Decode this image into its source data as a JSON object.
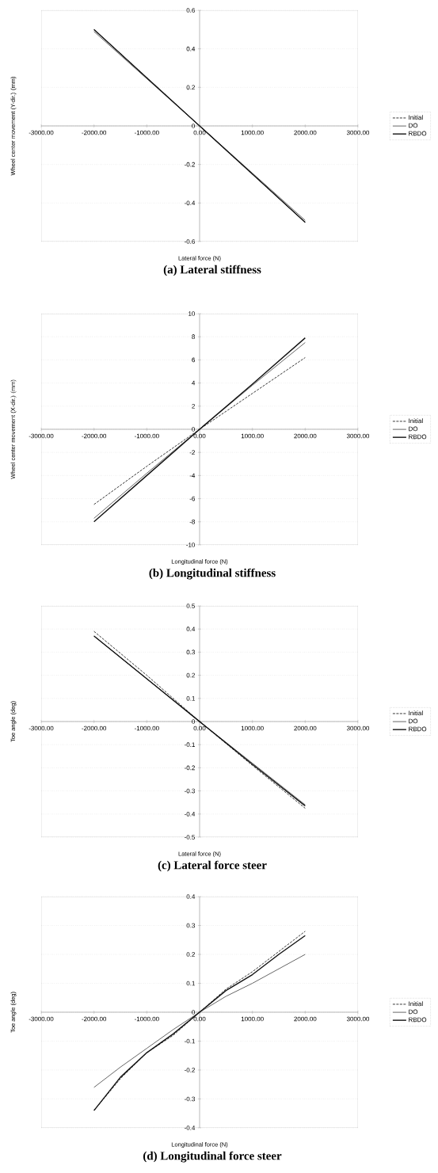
{
  "chart_data": [
    {
      "type": "line",
      "title": "(a) Lateral stiffness",
      "xlabel": "Lateral force (N)",
      "ylabel": "Wheel center movement (Y-dir.) (mm)",
      "x": [
        -2000,
        -1000,
        0,
        1000,
        2000
      ],
      "series": [
        {
          "name": "Initial",
          "color": "#222222",
          "line_style": "dashed",
          "values": [
            0.5,
            0.25,
            0,
            -0.25,
            -0.5
          ]
        },
        {
          "name": "DO",
          "color": "#555555",
          "line_style": "solid",
          "values": [
            0.49,
            0.245,
            0,
            -0.245,
            -0.49
          ]
        },
        {
          "name": "RBDO",
          "color": "#111111",
          "line_style": "solid",
          "values": [
            0.5,
            0.25,
            0,
            -0.25,
            -0.5
          ]
        }
      ],
      "xlim": [
        -3000,
        3000
      ],
      "ylim": [
        -0.6,
        0.6
      ],
      "xticks": [
        {
          "value": -3000,
          "label": "-3000.00"
        },
        {
          "value": -2000,
          "label": "-2000.00"
        },
        {
          "value": -1000,
          "label": "-1000.00"
        },
        {
          "value": 0,
          "label": "0.00"
        },
        {
          "value": 1000,
          "label": "1000.00"
        },
        {
          "value": 2000,
          "label": "2000.00"
        },
        {
          "value": 3000,
          "label": "3000.00"
        }
      ],
      "yticks": [
        -0.6,
        -0.4,
        -0.2,
        0,
        0.2,
        0.4,
        0.6
      ],
      "grid": "y",
      "legend": "right"
    },
    {
      "type": "line",
      "title": "(b) Longitudinal stiffness",
      "xlabel": "Longitudinal force (N)",
      "ylabel": "Wheel center movement (X-dir.) (mm)",
      "x": [
        -2000,
        -1000,
        0,
        1000,
        2000
      ],
      "series": [
        {
          "name": "Initial",
          "color": "#222222",
          "line_style": "dashed",
          "values": [
            -6.5,
            -3.2,
            0,
            3.1,
            6.2
          ]
        },
        {
          "name": "DO",
          "color": "#555555",
          "line_style": "solid",
          "values": [
            -7.7,
            -3.8,
            0,
            3.8,
            7.5
          ]
        },
        {
          "name": "RBDO",
          "color": "#111111",
          "line_style": "solid",
          "values": [
            -8.0,
            -4.0,
            0,
            3.9,
            7.9
          ]
        }
      ],
      "xlim": [
        -3000,
        3000
      ],
      "ylim": [
        -10,
        10
      ],
      "xticks": [
        {
          "value": -3000,
          "label": "-3000.00"
        },
        {
          "value": -2000,
          "label": "-2000.00"
        },
        {
          "value": -1000,
          "label": "-1000.00"
        },
        {
          "value": 0,
          "label": "0.00"
        },
        {
          "value": 1000,
          "label": "1000.00"
        },
        {
          "value": 2000,
          "label": "2000.00"
        },
        {
          "value": 3000,
          "label": "3000.00"
        }
      ],
      "yticks": [
        -10,
        -8,
        -6,
        -4,
        -2,
        0,
        2,
        4,
        6,
        8,
        10
      ],
      "grid": "y",
      "legend": "right"
    },
    {
      "type": "line",
      "title": "(c) Lateral force steer",
      "xlabel": "Lateral force (N)",
      "ylabel": "Toe angle (deg)",
      "x": [
        -2000,
        -1000,
        0,
        1000,
        2000
      ],
      "series": [
        {
          "name": "Initial",
          "color": "#222222",
          "line_style": "dashed",
          "values": [
            0.39,
            0.2,
            0,
            -0.19,
            -0.375
          ]
        },
        {
          "name": "DO",
          "color": "#555555",
          "line_style": "solid",
          "values": [
            0.37,
            0.185,
            0,
            -0.18,
            -0.36
          ]
        },
        {
          "name": "RBDO",
          "color": "#111111",
          "line_style": "solid",
          "values": [
            0.37,
            0.185,
            0,
            -0.185,
            -0.365
          ]
        }
      ],
      "xlim": [
        -3000,
        3000
      ],
      "ylim": [
        -0.5,
        0.5
      ],
      "xticks": [
        {
          "value": -3000,
          "label": "-3000.00"
        },
        {
          "value": -2000,
          "label": "-2000.00"
        },
        {
          "value": -1000,
          "label": "-1000.00"
        },
        {
          "value": 0,
          "label": "0.00"
        },
        {
          "value": 1000,
          "label": "1000.00"
        },
        {
          "value": 2000,
          "label": "2000.00"
        },
        {
          "value": 3000,
          "label": "3000.00"
        }
      ],
      "yticks": [
        -0.5,
        -0.4,
        -0.3,
        -0.2,
        -0.1,
        0,
        0.1,
        0.2,
        0.3,
        0.4,
        0.5
      ],
      "grid": "y",
      "legend": "right"
    },
    {
      "type": "line",
      "title": "(d) Longitudinal force steer",
      "xlabel": "Longitudinal force (N)",
      "ylabel": "Toe angle (deg)",
      "x": [
        -2000,
        -1500,
        -1000,
        -500,
        0,
        500,
        1000,
        1500,
        2000
      ],
      "series": [
        {
          "name": "Initial",
          "color": "#222222",
          "line_style": "dashed",
          "values": [
            -0.34,
            -0.23,
            -0.14,
            -0.08,
            0,
            0.08,
            0.14,
            0.21,
            0.28
          ]
        },
        {
          "name": "DO",
          "color": "#555555",
          "line_style": "solid",
          "values": [
            -0.26,
            -0.19,
            -0.125,
            -0.06,
            0,
            0.055,
            0.1,
            0.15,
            0.2
          ]
        },
        {
          "name": "RBDO",
          "color": "#111111",
          "line_style": "solid",
          "values": [
            -0.34,
            -0.225,
            -0.14,
            -0.075,
            0,
            0.075,
            0.13,
            0.2,
            0.265
          ]
        }
      ],
      "xlim": [
        -3000,
        3000
      ],
      "ylim": [
        -0.4,
        0.4
      ],
      "xticks": [
        {
          "value": -3000,
          "label": "-3000.00"
        },
        {
          "value": -2000,
          "label": "-2000.00"
        },
        {
          "value": -1000,
          "label": "-1000.00"
        },
        {
          "value": 0,
          "label": "0.00"
        },
        {
          "value": 1000,
          "label": "1000.00"
        },
        {
          "value": 2000,
          "label": "2000.00"
        },
        {
          "value": 3000,
          "label": "3000.00"
        }
      ],
      "yticks": [
        -0.4,
        -0.3,
        -0.2,
        -0.1,
        0,
        0.1,
        0.2,
        0.3,
        0.4
      ],
      "grid": "y",
      "legend": "right"
    }
  ]
}
